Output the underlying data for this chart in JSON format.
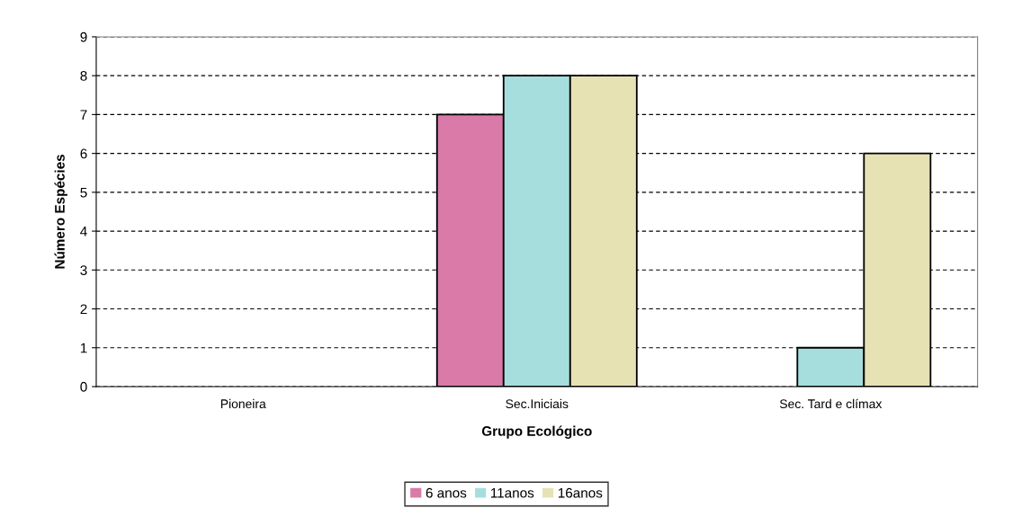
{
  "chart_data": {
    "type": "bar",
    "xlabel": "Grupo Ecológico",
    "ylabel": "Número Espécies",
    "categories": [
      "Pioneira",
      "Sec.Iniciais",
      "Sec. Tard e clímax"
    ],
    "series": [
      {
        "name": "6 anos",
        "color": "#d97aa8",
        "values": [
          0,
          7,
          0
        ]
      },
      {
        "name": "11anos",
        "color": "#a6dede",
        "values": [
          0,
          8,
          1
        ]
      },
      {
        "name": "16anos",
        "color": "#e6e2b4",
        "values": [
          0,
          8,
          6
        ]
      }
    ],
    "ylim": [
      0,
      9
    ],
    "yticks": [
      0,
      1,
      2,
      3,
      4,
      5,
      6,
      7,
      8,
      9
    ],
    "grid": "y",
    "legend": "bottom"
  }
}
